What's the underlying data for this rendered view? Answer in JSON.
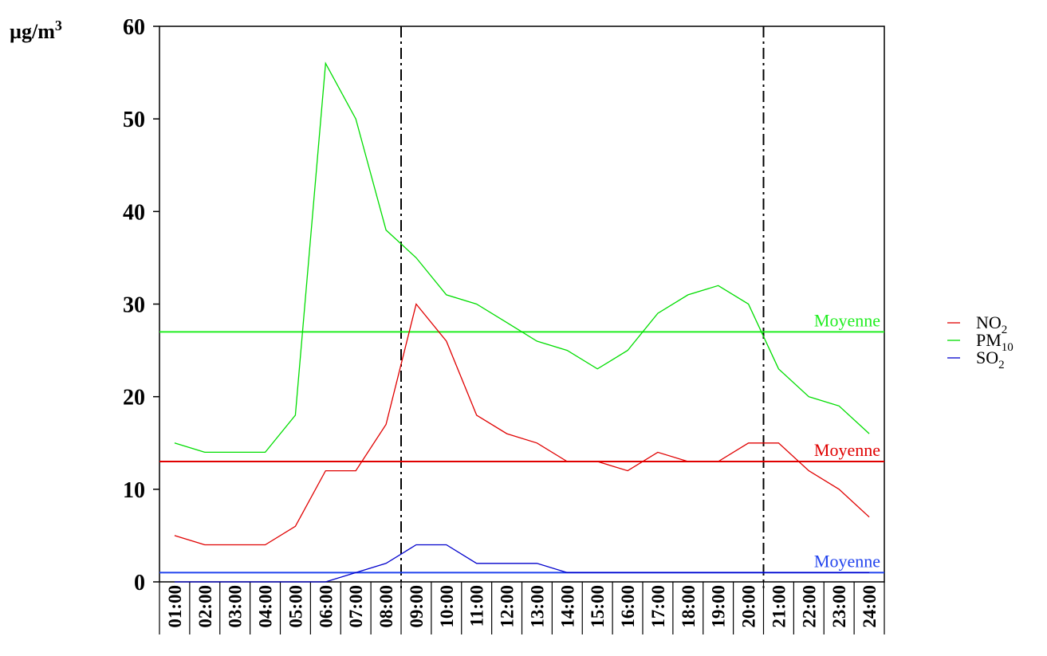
{
  "chart_data": {
    "type": "line",
    "ylabel": "µg/m",
    "ylabel_sup": "3",
    "ylim": [
      0,
      60
    ],
    "yticks": [
      0,
      10,
      20,
      30,
      40,
      50,
      60
    ],
    "categories": [
      "01:00",
      "02:00",
      "03:00",
      "04:00",
      "05:00",
      "06:00",
      "07:00",
      "08:00",
      "09:00",
      "10:00",
      "11:00",
      "12:00",
      "13:00",
      "14:00",
      "15:00",
      "16:00",
      "17:00",
      "18:00",
      "19:00",
      "20:00",
      "21:00",
      "22:00",
      "23:00",
      "24:00"
    ],
    "series": [
      {
        "name": "NO",
        "sub": "2",
        "color": "#e00000",
        "values": [
          5,
          4,
          4,
          4,
          6,
          12,
          12,
          17,
          30,
          26,
          18,
          16,
          15,
          13,
          13,
          12,
          14,
          13,
          13,
          15,
          15,
          12,
          10,
          7
        ],
        "mean": 13,
        "mean_color": "#e00000",
        "mean_label": "Moyenne"
      },
      {
        "name": "PM",
        "sub": "10",
        "color": "#00dd00",
        "values": [
          15,
          14,
          14,
          14,
          18,
          56,
          50,
          38,
          35,
          31,
          30,
          28,
          26,
          25,
          23,
          25,
          29,
          31,
          32,
          30,
          23,
          20,
          19,
          16
        ],
        "mean": 27,
        "mean_color": "#22ee22",
        "mean_label": "Moyenne"
      },
      {
        "name": "SO",
        "sub": "2",
        "color": "#0000cc",
        "values": [
          0,
          0,
          0,
          0,
          0,
          0,
          1,
          2,
          4,
          4,
          2,
          2,
          2,
          1,
          1,
          1,
          1,
          1,
          1,
          1,
          1,
          1,
          1,
          1
        ],
        "mean": 1,
        "mean_color": "#2244ee",
        "mean_label": "Moyenne"
      }
    ],
    "vlines_at_category_boundary": [
      "08:00",
      "20:00"
    ],
    "legend_position": "right",
    "grid": false
  }
}
